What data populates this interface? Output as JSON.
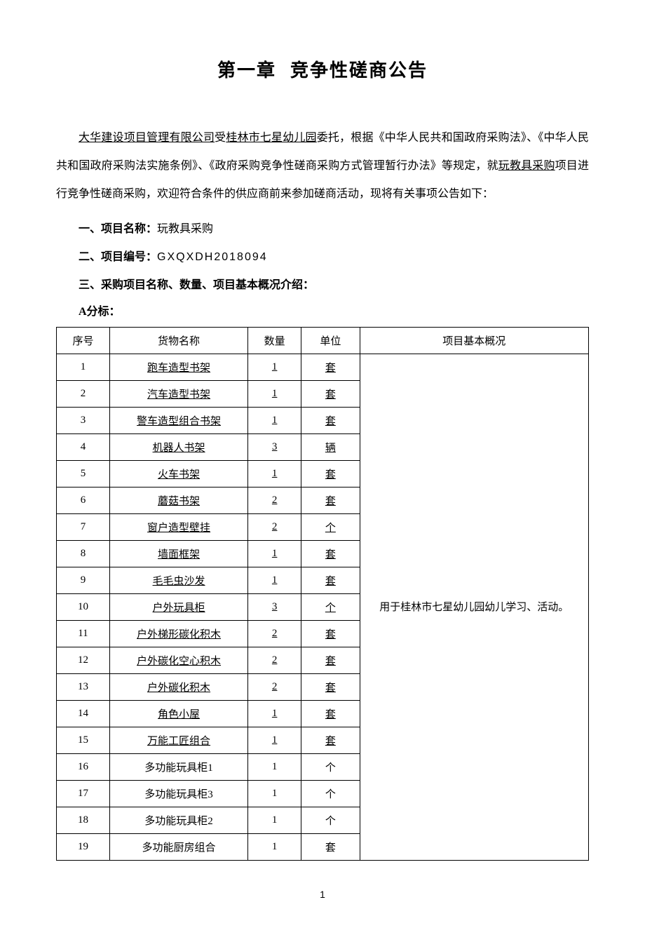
{
  "chapter": {
    "label": "第一章",
    "title": "竞争性磋商公告"
  },
  "intro": {
    "agent": "大华建设项目管理有限公司",
    "owner_prefix": "受",
    "owner": "桂林市七星幼儿园",
    "body_1": "委托，根据《中华人民共和国政府采购法》、《中华人民共和国政府采购法实施条例》、《政府采购竞争性磋商采购方式管理暂行办法》等规定，就",
    "project_ref": "玩教具采购",
    "body_2": "项目进行竞争性磋商采购，欢迎符合条件的供应商前来参加磋商活动，现将有关事项公告如下："
  },
  "sections": {
    "s1_label": "一、项目名称：",
    "s1_value": "玩教具采购",
    "s2_label": "二、项目编号：",
    "s2_value": "GXQXDH2018094",
    "s3_label": "三、采购项目名称、数量、项目基本概况介绍：",
    "a_lot": "A分标："
  },
  "table": {
    "headers": {
      "seq": "序号",
      "name": "货物名称",
      "qty": "数量",
      "unit": "单位",
      "desc": "项目基本概况"
    },
    "desc_text": "用于桂林市七星幼儿园幼儿学习、活动。",
    "rows": [
      {
        "seq": "1",
        "name": "跑车造型书架",
        "qty": "1",
        "unit": "套",
        "u": true
      },
      {
        "seq": "2",
        "name": "汽车造型书架",
        "qty": "1",
        "unit": "套",
        "u": true
      },
      {
        "seq": "3",
        "name": "警车造型组合书架",
        "qty": "1",
        "unit": "套",
        "u": true
      },
      {
        "seq": "4",
        "name": "机器人书架",
        "qty": "3",
        "unit": "辆",
        "u": true
      },
      {
        "seq": "5",
        "name": "火车书架",
        "qty": "1",
        "unit": "套",
        "u": true
      },
      {
        "seq": "6",
        "name": "蘑菇书架",
        "qty": "2",
        "unit": "套",
        "u": true
      },
      {
        "seq": "7",
        "name": "窗户造型壁挂",
        "qty": "2",
        "unit": "个",
        "u": true
      },
      {
        "seq": "8",
        "name": "墙面框架",
        "qty": "1",
        "unit": "套",
        "u": true
      },
      {
        "seq": "9",
        "name": "毛毛虫沙发",
        "qty": "1",
        "unit": "套",
        "u": true
      },
      {
        "seq": "10",
        "name": "户外玩具柜",
        "qty": "3",
        "unit": "个",
        "u": true
      },
      {
        "seq": "11",
        "name": "户外梯形碳化积木",
        "qty": "2",
        "unit": "套",
        "u": true
      },
      {
        "seq": "12",
        "name": "户外碳化空心积木",
        "qty": "2",
        "unit": "套",
        "u": true
      },
      {
        "seq": "13",
        "name": "户外碳化积木",
        "qty": "2",
        "unit": "套",
        "u": true
      },
      {
        "seq": "14",
        "name": "角色小屋",
        "qty": "1",
        "unit": "套",
        "u": true
      },
      {
        "seq": "15",
        "name": "万能工匠组合",
        "qty": "1",
        "unit": "套",
        "u": true
      },
      {
        "seq": "16",
        "name": "多功能玩具柜1",
        "qty": "1",
        "unit": "个",
        "u": false
      },
      {
        "seq": "17",
        "name": "多功能玩具柜3",
        "qty": "1",
        "unit": "个",
        "u": false
      },
      {
        "seq": "18",
        "name": "多功能玩具柜2",
        "qty": "1",
        "unit": "个",
        "u": false
      },
      {
        "seq": "19",
        "name": "多功能厨房组合",
        "qty": "1",
        "unit": "套",
        "u": false
      }
    ]
  },
  "page_number": "1"
}
